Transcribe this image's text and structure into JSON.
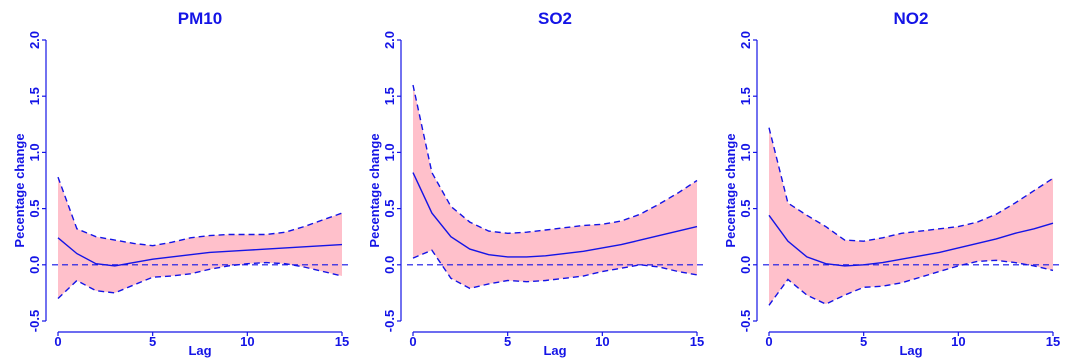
{
  "colors": {
    "line": "#1414e6",
    "band": "#ffc0cb",
    "text": "#1414e6"
  },
  "chart_data": [
    {
      "type": "line",
      "title": "PM10",
      "xlabel": "Lag",
      "ylabel": "Pecentage change",
      "xlim": [
        0,
        15
      ],
      "ylim": [
        -0.5,
        2.0
      ],
      "xticks": [
        "0",
        "5",
        "10",
        "15"
      ],
      "yticks": [
        "-0.5",
        "0.0",
        "0.5",
        "1.0",
        "1.5",
        "2.0"
      ],
      "reference_line": 0,
      "x": [
        0,
        1,
        2,
        3,
        4,
        5,
        6,
        7,
        8,
        9,
        10,
        11,
        12,
        13,
        14,
        15
      ],
      "series": [
        {
          "role": "estimate",
          "values": [
            0.24,
            0.1,
            0.01,
            -0.01,
            0.02,
            0.05,
            0.07,
            0.09,
            0.11,
            0.12,
            0.13,
            0.14,
            0.15,
            0.16,
            0.17,
            0.18
          ]
        },
        {
          "role": "upper",
          "values": [
            0.78,
            0.32,
            0.25,
            0.22,
            0.19,
            0.17,
            0.2,
            0.24,
            0.26,
            0.27,
            0.27,
            0.27,
            0.29,
            0.34,
            0.4,
            0.46
          ]
        },
        {
          "role": "lower",
          "values": [
            -0.3,
            -0.14,
            -0.23,
            -0.25,
            -0.18,
            -0.11,
            -0.1,
            -0.08,
            -0.04,
            -0.01,
            0.01,
            0.02,
            0.01,
            -0.02,
            -0.06,
            -0.1
          ]
        }
      ]
    },
    {
      "type": "line",
      "title": "SO2",
      "xlabel": "Lag",
      "ylabel": "Pecentage change",
      "xlim": [
        0,
        15
      ],
      "ylim": [
        -0.5,
        2.0
      ],
      "xticks": [
        "0",
        "5",
        "10",
        "15"
      ],
      "yticks": [
        "-0.5",
        "0.0",
        "0.5",
        "1.0",
        "1.5",
        "2.0"
      ],
      "reference_line": 0,
      "x": [
        0,
        1,
        2,
        3,
        4,
        5,
        6,
        7,
        8,
        9,
        10,
        11,
        12,
        13,
        14,
        15
      ],
      "series": [
        {
          "role": "estimate",
          "values": [
            0.82,
            0.46,
            0.25,
            0.14,
            0.09,
            0.07,
            0.07,
            0.08,
            0.1,
            0.12,
            0.15,
            0.18,
            0.22,
            0.26,
            0.3,
            0.34
          ]
        },
        {
          "role": "upper",
          "values": [
            1.6,
            0.82,
            0.52,
            0.38,
            0.3,
            0.28,
            0.29,
            0.31,
            0.33,
            0.35,
            0.36,
            0.39,
            0.45,
            0.54,
            0.64,
            0.75
          ]
        },
        {
          "role": "lower",
          "values": [
            0.06,
            0.13,
            -0.12,
            -0.21,
            -0.17,
            -0.14,
            -0.15,
            -0.14,
            -0.12,
            -0.1,
            -0.06,
            -0.03,
            0.0,
            -0.02,
            -0.06,
            -0.09
          ]
        }
      ]
    },
    {
      "type": "line",
      "title": "NO2",
      "xlabel": "Lag",
      "ylabel": "Pecentage change",
      "xlim": [
        0,
        15
      ],
      "ylim": [
        -0.5,
        2.0
      ],
      "xticks": [
        "0",
        "5",
        "10",
        "15"
      ],
      "yticks": [
        "-0.5",
        "0.0",
        "0.5",
        "1.0",
        "1.5",
        "2.0"
      ],
      "reference_line": 0,
      "x": [
        0,
        1,
        2,
        3,
        4,
        5,
        6,
        7,
        8,
        9,
        10,
        11,
        12,
        13,
        14,
        15
      ],
      "series": [
        {
          "role": "estimate",
          "values": [
            0.44,
            0.21,
            0.07,
            0.01,
            -0.01,
            0.0,
            0.02,
            0.05,
            0.08,
            0.11,
            0.15,
            0.19,
            0.23,
            0.28,
            0.32,
            0.37
          ]
        },
        {
          "role": "upper",
          "values": [
            1.22,
            0.55,
            0.44,
            0.34,
            0.22,
            0.21,
            0.24,
            0.28,
            0.3,
            0.32,
            0.34,
            0.38,
            0.45,
            0.55,
            0.66,
            0.77
          ]
        },
        {
          "role": "lower",
          "values": [
            -0.36,
            -0.13,
            -0.27,
            -0.35,
            -0.27,
            -0.2,
            -0.19,
            -0.16,
            -0.11,
            -0.06,
            -0.01,
            0.03,
            0.04,
            0.02,
            -0.01,
            -0.05
          ]
        }
      ]
    }
  ]
}
